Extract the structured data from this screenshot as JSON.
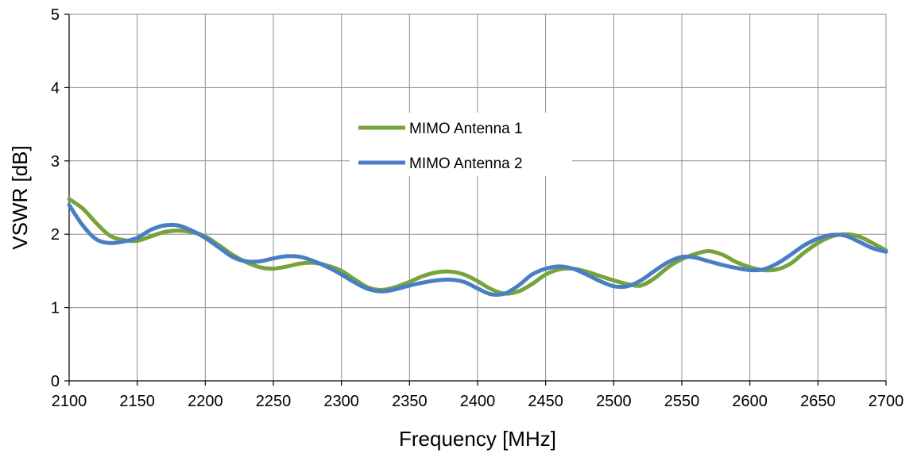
{
  "chart_data": {
    "type": "line",
    "xlabel": "Frequency [MHz]",
    "ylabel": "VSWR [dB]",
    "xlim": [
      2100,
      2700
    ],
    "ylim": [
      0,
      5
    ],
    "xticks": [
      "2100",
      "2150",
      "2200",
      "2250",
      "2300",
      "2350",
      "2400",
      "2450",
      "2500",
      "2550",
      "2600",
      "2650",
      "2700"
    ],
    "yticks": [
      "0",
      "1",
      "2",
      "3",
      "4",
      "5"
    ],
    "grid": true,
    "legend_position": "center",
    "series": [
      {
        "name": "MIMO Antenna 1",
        "color": "#77a33b",
        "x": [
          2100,
          2110,
          2120,
          2130,
          2140,
          2150,
          2160,
          2170,
          2180,
          2190,
          2200,
          2210,
          2220,
          2230,
          2240,
          2250,
          2260,
          2270,
          2280,
          2290,
          2300,
          2310,
          2320,
          2330,
          2340,
          2350,
          2360,
          2370,
          2380,
          2390,
          2400,
          2410,
          2420,
          2430,
          2440,
          2450,
          2460,
          2470,
          2480,
          2490,
          2500,
          2510,
          2520,
          2530,
          2540,
          2550,
          2560,
          2570,
          2580,
          2590,
          2600,
          2610,
          2620,
          2630,
          2640,
          2650,
          2660,
          2670,
          2680,
          2690,
          2700
        ],
        "y": [
          2.48,
          2.35,
          2.15,
          1.98,
          1.92,
          1.91,
          1.97,
          2.03,
          2.05,
          2.03,
          1.97,
          1.85,
          1.72,
          1.62,
          1.55,
          1.53,
          1.56,
          1.6,
          1.61,
          1.57,
          1.5,
          1.38,
          1.27,
          1.24,
          1.28,
          1.35,
          1.43,
          1.48,
          1.49,
          1.45,
          1.36,
          1.25,
          1.19,
          1.22,
          1.32,
          1.45,
          1.52,
          1.53,
          1.49,
          1.43,
          1.37,
          1.32,
          1.3,
          1.4,
          1.55,
          1.66,
          1.73,
          1.77,
          1.72,
          1.62,
          1.55,
          1.51,
          1.52,
          1.6,
          1.75,
          1.88,
          1.97,
          2.0,
          1.97,
          1.88,
          1.78
        ]
      },
      {
        "name": "MIMO Antenna 2",
        "color": "#4a7ec4",
        "x": [
          2100,
          2110,
          2120,
          2130,
          2140,
          2150,
          2160,
          2170,
          2180,
          2190,
          2200,
          2210,
          2220,
          2230,
          2240,
          2250,
          2260,
          2270,
          2280,
          2290,
          2300,
          2310,
          2320,
          2330,
          2340,
          2350,
          2360,
          2370,
          2380,
          2390,
          2400,
          2410,
          2420,
          2430,
          2440,
          2450,
          2460,
          2470,
          2480,
          2490,
          2500,
          2510,
          2520,
          2530,
          2540,
          2550,
          2560,
          2570,
          2580,
          2590,
          2600,
          2610,
          2620,
          2630,
          2640,
          2650,
          2660,
          2670,
          2680,
          2690,
          2700
        ],
        "y": [
          2.4,
          2.12,
          1.93,
          1.88,
          1.9,
          1.95,
          2.06,
          2.12,
          2.12,
          2.05,
          1.95,
          1.82,
          1.69,
          1.63,
          1.63,
          1.67,
          1.7,
          1.69,
          1.63,
          1.55,
          1.45,
          1.34,
          1.25,
          1.22,
          1.25,
          1.3,
          1.34,
          1.37,
          1.38,
          1.35,
          1.26,
          1.18,
          1.19,
          1.3,
          1.45,
          1.53,
          1.56,
          1.53,
          1.45,
          1.36,
          1.29,
          1.29,
          1.37,
          1.5,
          1.62,
          1.69,
          1.68,
          1.63,
          1.58,
          1.54,
          1.51,
          1.52,
          1.6,
          1.72,
          1.85,
          1.94,
          1.99,
          1.98,
          1.9,
          1.81,
          1.76
        ]
      }
    ]
  }
}
